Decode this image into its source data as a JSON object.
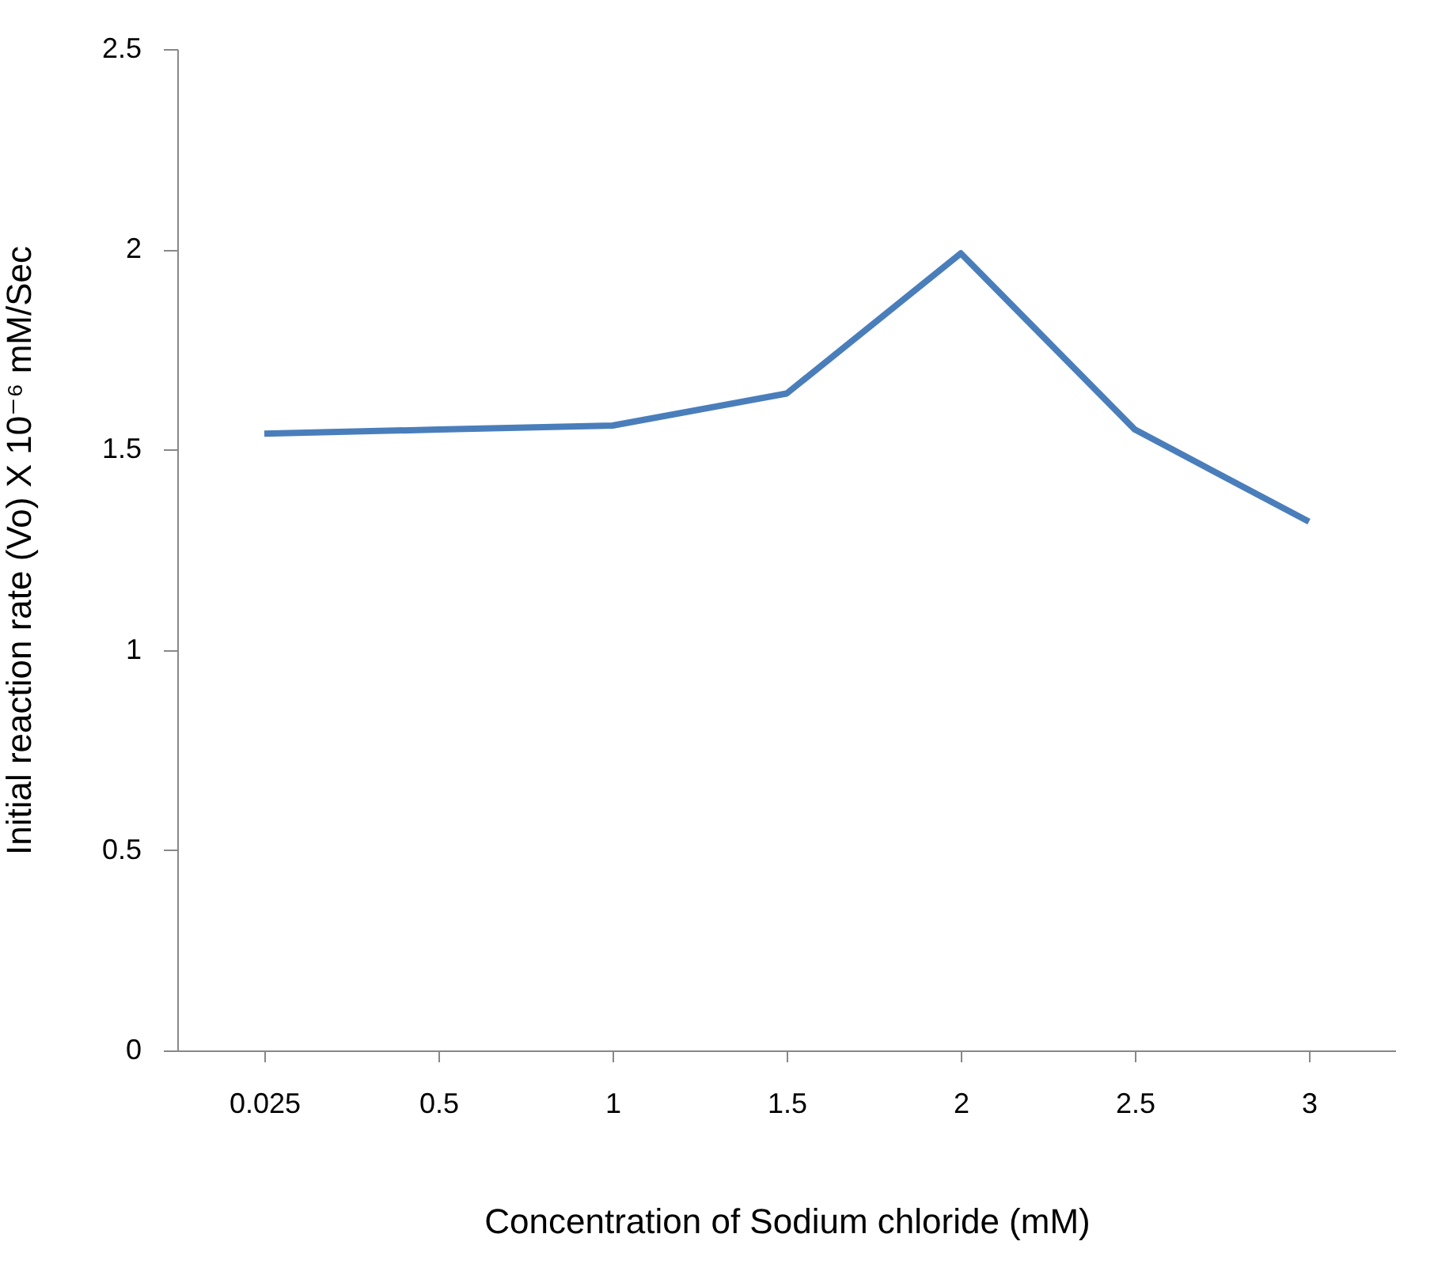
{
  "chart_data": {
    "type": "line",
    "xlabel": "Concentration of  Sodium chloride (mM)",
    "ylabel": "Initial reaction rate (Vo)  X 10⁻⁶ mM/Sec",
    "categories": [
      "0.025",
      "0.5",
      "1",
      "1.5",
      "2",
      "2.5",
      "3"
    ],
    "series": [
      {
        "color": "#4a7ebb",
        "values": [
          1.54,
          1.55,
          1.56,
          1.64,
          1.99,
          1.55,
          1.32
        ]
      }
    ],
    "ylim": [
      0,
      2.5
    ],
    "yticks": [
      0,
      0.5,
      1,
      1.5,
      2,
      2.5
    ],
    "grid": false,
    "legend": false,
    "marker": "none",
    "line_style": "solid"
  }
}
